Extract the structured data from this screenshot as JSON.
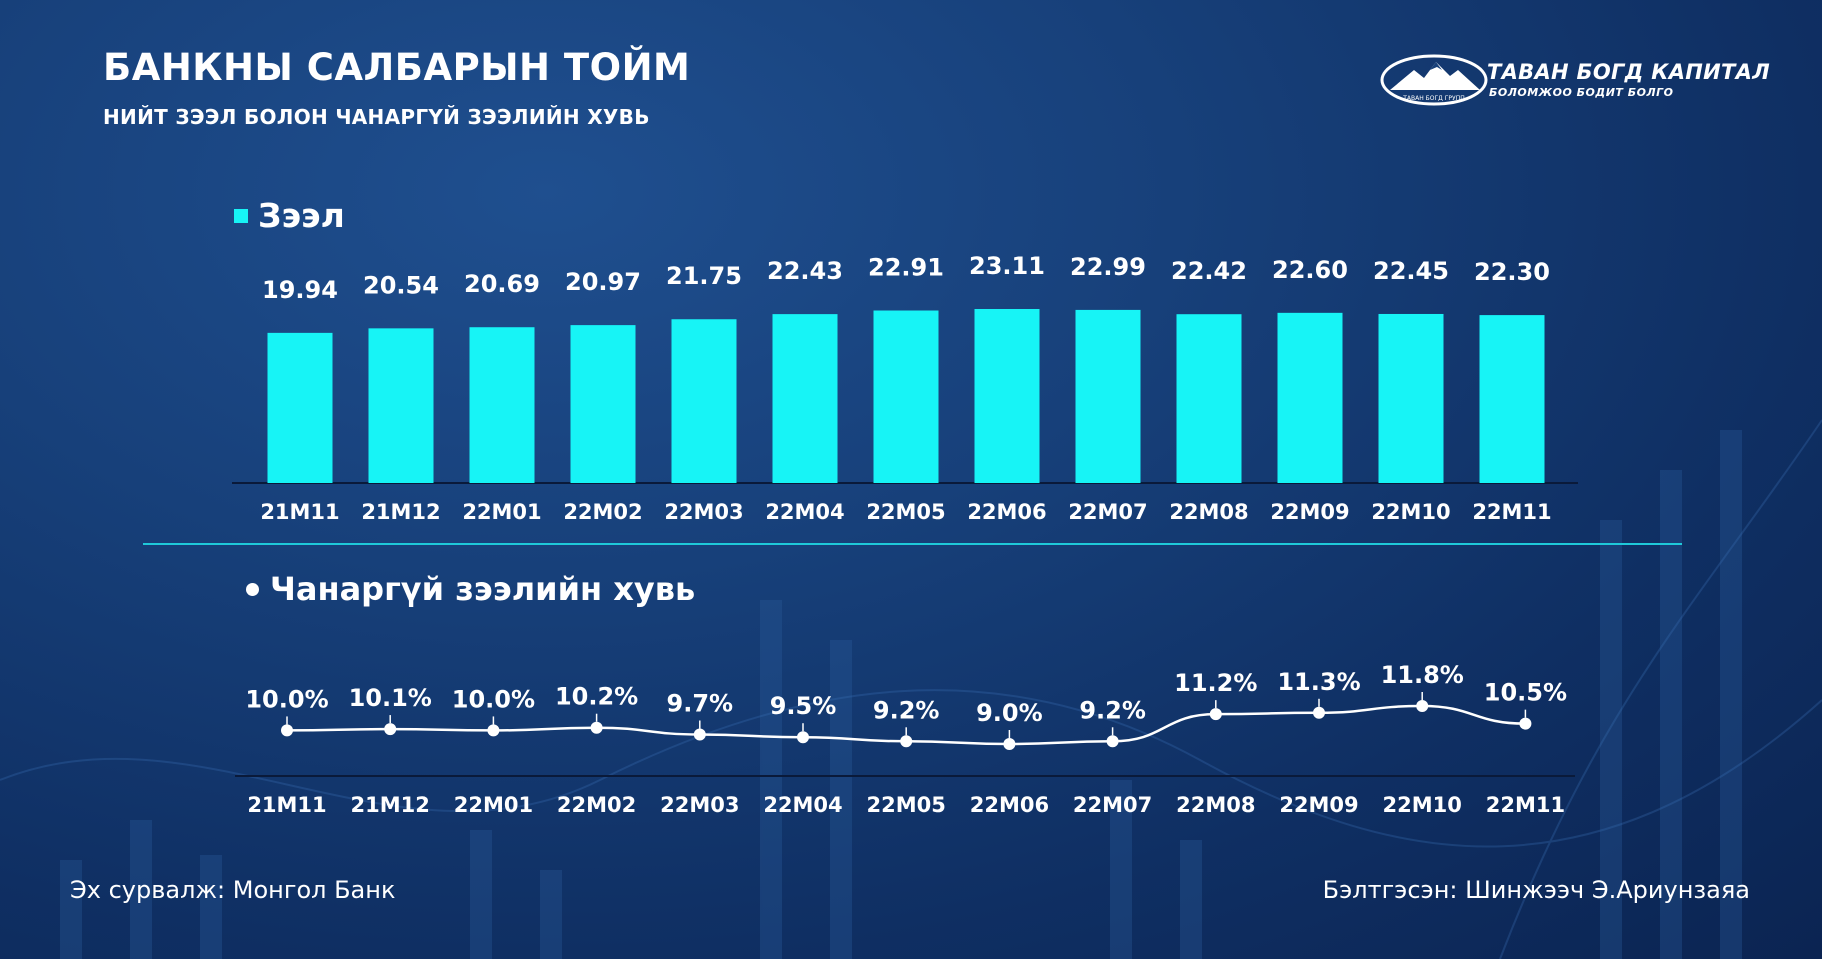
{
  "header": {
    "title": "БАНКНЫ САЛБАРЫН ТОЙМ",
    "subtitle": "НИЙТ ЗЭЭЛ БОЛОН ЧАНАРГҮЙ ЗЭЭЛИЙН ХУВЬ"
  },
  "logo": {
    "name": "ТАВАН БОГД КАПИТАЛ",
    "tagline": "БОЛОМЖОО БОДИТ БОЛГО",
    "emblem_text": "ТАВАН БОГД ГРУПП"
  },
  "colors": {
    "accent": "#17f4f6",
    "line": "#ffffff",
    "separator": "#1fc9d9",
    "background": "#17407a"
  },
  "chart_data": [
    {
      "type": "bar",
      "legend": "Зээл",
      "categories": [
        "21M11",
        "21M12",
        "22M01",
        "22M02",
        "22M03",
        "22M04",
        "22M05",
        "22M06",
        "22M07",
        "22M08",
        "22M09",
        "22M10",
        "22M11"
      ],
      "values": [
        19.94,
        20.54,
        20.69,
        20.97,
        21.75,
        22.43,
        22.91,
        23.11,
        22.99,
        22.42,
        22.6,
        22.45,
        22.3
      ],
      "labels": [
        "19.94",
        "20.54",
        "20.69",
        "20.97",
        "21.75",
        "22.43",
        "22.91",
        "23.11",
        "22.99",
        "22.42",
        "22.60",
        "22.45",
        "22.30"
      ],
      "ylim": [
        0,
        23.11
      ],
      "grid": false,
      "color": "#17f4f6"
    },
    {
      "type": "line",
      "legend": "Чанаргүй зээлийн хувь",
      "categories": [
        "21M11",
        "21M12",
        "22M01",
        "22M02",
        "22M03",
        "22M04",
        "22M05",
        "22M06",
        "22M07",
        "22M08",
        "22M09",
        "22M10",
        "22M11"
      ],
      "values": [
        10.0,
        10.1,
        10.0,
        10.2,
        9.7,
        9.5,
        9.2,
        9.0,
        9.2,
        11.2,
        11.3,
        11.8,
        10.5
      ],
      "labels": [
        "10.0%",
        "10.1%",
        "10.0%",
        "10.2%",
        "9.7%",
        "9.5%",
        "9.2%",
        "9.0%",
        "9.2%",
        "11.2%",
        "11.3%",
        "11.8%",
        "10.5%"
      ],
      "grid": false,
      "color": "#ffffff"
    }
  ],
  "footer": {
    "source": "Эх сурвалж: Монгол Банк",
    "author": "Бэлтгэсэн: Шинжээч Э.Ариунзаяа"
  }
}
